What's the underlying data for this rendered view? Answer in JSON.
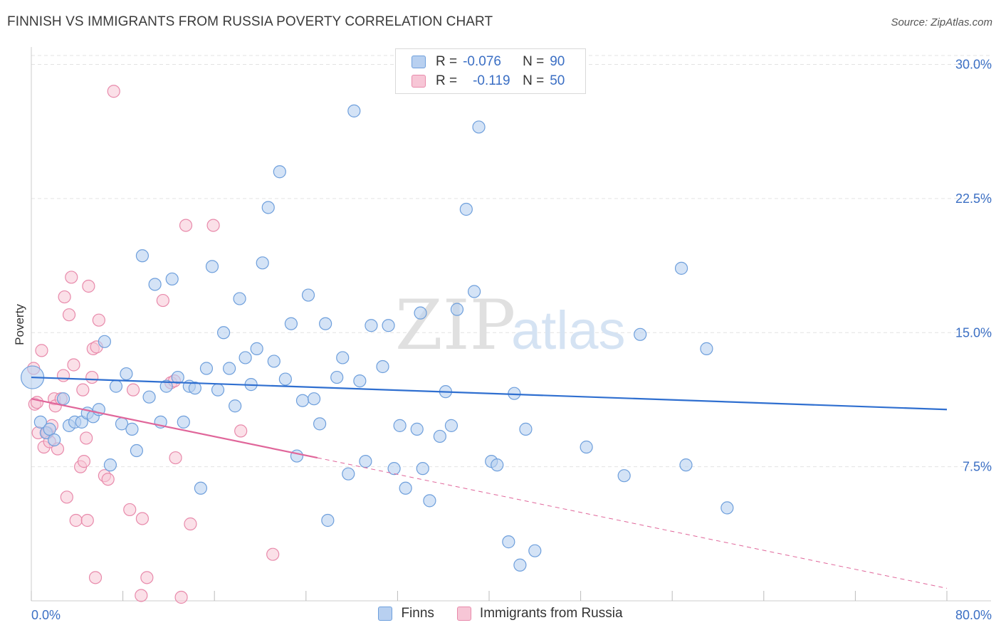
{
  "header": {
    "title": "FINNISH VS IMMIGRANTS FROM RUSSIA POVERTY CORRELATION CHART",
    "source": "Source: ZipAtlas.com"
  },
  "legend": {
    "finns": {
      "r_label": "R =",
      "r_value": "-0.076",
      "n_label": "N =",
      "n_value": "90"
    },
    "russia": {
      "r_label": "R =",
      "r_value": "-0.119",
      "n_label": "N =",
      "n_value": "50"
    }
  },
  "watermark": {
    "zip": "ZIP",
    "atlas": "atlas"
  },
  "colors": {
    "finns_fill": "#b8d0f0",
    "finns_stroke": "#6e9fdc",
    "finns_line": "#2f6fd0",
    "russia_fill": "#f7c6d6",
    "russia_stroke": "#e88aab",
    "russia_line": "#e0669a",
    "grid": "#e3e3e3",
    "tick_text": "#3b6fc4"
  },
  "chart_data": {
    "type": "scatter",
    "title": "FINNISH VS IMMIGRANTS FROM RUSSIA POVERTY CORRELATION CHART",
    "xlabel": "",
    "ylabel": "Poverty",
    "xlim": [
      0,
      80
    ],
    "ylim": [
      0,
      30.5
    ],
    "x_tick_labels": [
      "0.0%",
      "80.0%"
    ],
    "y_ticks": [
      7.5,
      15.0,
      22.5,
      30.0
    ],
    "y_tick_labels": [
      "7.5%",
      "15.0%",
      "22.5%",
      "30.0%"
    ],
    "grid": true,
    "legend_position": "bottom",
    "series": [
      {
        "name": "Finns",
        "r": -0.076,
        "n": 90,
        "trend": {
          "x": [
            0,
            80
          ],
          "y": [
            12.5,
            10.7
          ],
          "style": "solid"
        },
        "points": [
          [
            0.1,
            12.5
          ],
          [
            0.8,
            10.0
          ],
          [
            1.3,
            9.4
          ],
          [
            1.6,
            9.6
          ],
          [
            2.0,
            9.0
          ],
          [
            2.8,
            11.3
          ],
          [
            3.3,
            9.8
          ],
          [
            3.8,
            10.0
          ],
          [
            4.4,
            10.0
          ],
          [
            4.9,
            10.5
          ],
          [
            5.4,
            10.3
          ],
          [
            5.9,
            10.7
          ],
          [
            6.4,
            14.5
          ],
          [
            6.9,
            7.6
          ],
          [
            7.4,
            12.0
          ],
          [
            7.9,
            9.9
          ],
          [
            8.3,
            12.7
          ],
          [
            8.8,
            9.6
          ],
          [
            9.2,
            8.4
          ],
          [
            9.7,
            19.3
          ],
          [
            10.3,
            11.4
          ],
          [
            10.8,
            17.7
          ],
          [
            11.3,
            10.0
          ],
          [
            11.8,
            12.0
          ],
          [
            12.3,
            18.0
          ],
          [
            12.8,
            12.5
          ],
          [
            13.3,
            10.0
          ],
          [
            13.8,
            12.0
          ],
          [
            14.3,
            11.9
          ],
          [
            14.8,
            6.3
          ],
          [
            15.3,
            13.0
          ],
          [
            15.8,
            18.7
          ],
          [
            16.3,
            11.8
          ],
          [
            16.8,
            15.0
          ],
          [
            17.3,
            13.0
          ],
          [
            17.8,
            10.9
          ],
          [
            18.2,
            16.9
          ],
          [
            18.7,
            13.6
          ],
          [
            19.2,
            12.1
          ],
          [
            19.7,
            14.1
          ],
          [
            20.2,
            18.9
          ],
          [
            20.7,
            22.0
          ],
          [
            21.2,
            13.4
          ],
          [
            21.7,
            24.0
          ],
          [
            22.2,
            12.4
          ],
          [
            22.7,
            15.5
          ],
          [
            23.2,
            8.1
          ],
          [
            23.7,
            11.2
          ],
          [
            24.2,
            17.1
          ],
          [
            24.7,
            11.3
          ],
          [
            25.2,
            9.9
          ],
          [
            25.7,
            15.5
          ],
          [
            25.9,
            4.5
          ],
          [
            26.7,
            12.5
          ],
          [
            27.2,
            13.6
          ],
          [
            27.7,
            7.1
          ],
          [
            28.2,
            27.4
          ],
          [
            28.7,
            12.3
          ],
          [
            29.2,
            7.8
          ],
          [
            29.7,
            15.4
          ],
          [
            30.7,
            13.1
          ],
          [
            31.2,
            15.4
          ],
          [
            31.7,
            7.4
          ],
          [
            32.2,
            9.8
          ],
          [
            32.7,
            6.3
          ],
          [
            33.7,
            9.6
          ],
          [
            34.0,
            16.1
          ],
          [
            34.2,
            7.4
          ],
          [
            34.8,
            5.6
          ],
          [
            35.7,
            9.2
          ],
          [
            36.2,
            11.7
          ],
          [
            36.7,
            9.8
          ],
          [
            37.2,
            16.3
          ],
          [
            38.0,
            21.9
          ],
          [
            38.7,
            17.3
          ],
          [
            39.1,
            26.5
          ],
          [
            40.2,
            7.8
          ],
          [
            40.7,
            7.6
          ],
          [
            41.7,
            3.3
          ],
          [
            42.2,
            11.6
          ],
          [
            42.7,
            2.0
          ],
          [
            43.2,
            9.6
          ],
          [
            44.0,
            2.8
          ],
          [
            48.5,
            8.6
          ],
          [
            51.8,
            7.0
          ],
          [
            53.2,
            14.9
          ],
          [
            56.8,
            18.6
          ],
          [
            57.2,
            7.6
          ],
          [
            59.0,
            14.1
          ],
          [
            60.8,
            5.2
          ]
        ]
      },
      {
        "name": "Immigrants from Russia",
        "r": -0.119,
        "n": 50,
        "trend": {
          "x": [
            0,
            25,
            80
          ],
          "y": [
            11.3,
            8.0,
            0.7
          ],
          "style": "solid-then-dashed",
          "solid_until_x": 25
        },
        "points": [
          [
            0.2,
            13.0
          ],
          [
            0.3,
            11.0
          ],
          [
            0.5,
            11.1
          ],
          [
            0.6,
            9.4
          ],
          [
            0.9,
            14.0
          ],
          [
            1.1,
            8.6
          ],
          [
            1.3,
            9.4
          ],
          [
            1.4,
            9.4
          ],
          [
            1.6,
            8.9
          ],
          [
            1.8,
            9.8
          ],
          [
            2.0,
            11.3
          ],
          [
            2.1,
            10.9
          ],
          [
            2.3,
            8.5
          ],
          [
            2.6,
            11.3
          ],
          [
            2.8,
            12.6
          ],
          [
            2.9,
            17.0
          ],
          [
            3.1,
            5.8
          ],
          [
            3.3,
            16.0
          ],
          [
            3.5,
            18.1
          ],
          [
            3.7,
            13.2
          ],
          [
            3.9,
            4.5
          ],
          [
            4.3,
            7.5
          ],
          [
            4.5,
            11.8
          ],
          [
            4.6,
            7.8
          ],
          [
            4.8,
            9.1
          ],
          [
            4.9,
            4.5
          ],
          [
            5.0,
            17.6
          ],
          [
            5.3,
            12.5
          ],
          [
            5.4,
            14.1
          ],
          [
            5.6,
            1.3
          ],
          [
            5.7,
            14.2
          ],
          [
            5.9,
            15.7
          ],
          [
            6.4,
            7.0
          ],
          [
            6.7,
            6.8
          ],
          [
            7.2,
            28.5
          ],
          [
            8.6,
            5.1
          ],
          [
            8.9,
            11.8
          ],
          [
            9.6,
            0.3
          ],
          [
            9.7,
            4.6
          ],
          [
            10.1,
            1.3
          ],
          [
            11.5,
            16.8
          ],
          [
            12.2,
            12.2
          ],
          [
            12.5,
            12.3
          ],
          [
            12.6,
            8.0
          ],
          [
            13.1,
            0.2
          ],
          [
            13.5,
            21.0
          ],
          [
            13.9,
            4.3
          ],
          [
            15.9,
            21.0
          ],
          [
            18.3,
            9.5
          ],
          [
            21.1,
            2.6
          ]
        ]
      }
    ]
  }
}
